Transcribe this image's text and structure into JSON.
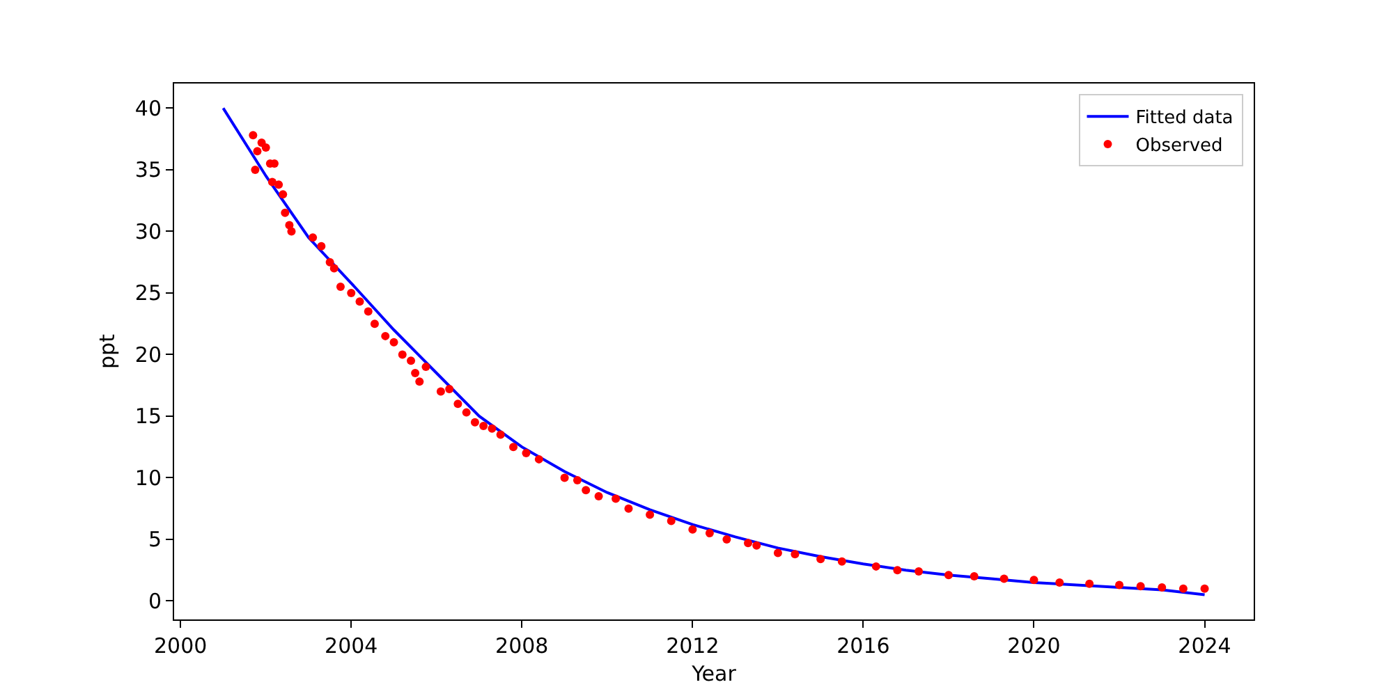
{
  "chart_data": {
    "type": "line",
    "xlabel": "Year",
    "ylabel": "ppt",
    "xlim": [
      1999.85,
      2025.15
    ],
    "xticks": [
      2000,
      2004,
      2008,
      2012,
      2016,
      2020,
      2024
    ],
    "ylim": [
      -1.5,
      42
    ],
    "yticks": [
      0,
      5,
      10,
      15,
      20,
      25,
      30,
      35,
      40
    ],
    "grid": false,
    "legend": "top right",
    "series": [
      {
        "name": "Fitted data",
        "color": "#0000ff",
        "line_style": "solid",
        "marker": "none",
        "x": [
          2001,
          2002,
          2003,
          2004,
          2005,
          2006,
          2007,
          2008,
          2009,
          2010,
          2011,
          2012,
          2013,
          2014,
          2015,
          2016,
          2017,
          2018,
          2019,
          2020,
          2021,
          2022,
          2023,
          2023.5,
          2024
        ],
        "values": [
          40,
          34.5,
          29.5,
          25.8,
          22,
          18.5,
          15,
          12.5,
          10.5,
          8.8,
          7.4,
          6.2,
          5.2,
          4.3,
          3.6,
          3,
          2.5,
          2.1,
          1.8,
          1.5,
          1.3,
          1.1,
          0.9,
          0.7,
          0.5
        ]
      },
      {
        "name": "Observed",
        "type": "scatter",
        "color": "#ff0000",
        "marker": "circle",
        "x": [
          2001.7,
          2001.75,
          2001.8,
          2001.9,
          2002,
          2002.1,
          2002.15,
          2002.2,
          2002.3,
          2002.4,
          2002.45,
          2002.55,
          2002.6,
          2003.1,
          2003.3,
          2003.5,
          2003.6,
          2003.75,
          2004,
          2004.2,
          2004.4,
          2004.55,
          2004.8,
          2005,
          2005.2,
          2005.4,
          2005.5,
          2005.6,
          2005.75,
          2006.1,
          2006.3,
          2006.5,
          2006.7,
          2006.9,
          2007.1,
          2007.3,
          2007.5,
          2007.8,
          2008.1,
          2008.4,
          2009,
          2009.3,
          2009.5,
          2009.8,
          2010.2,
          2010.5,
          2011,
          2011.5,
          2012,
          2012.4,
          2012.8,
          2013.3,
          2013.5,
          2014,
          2014.4,
          2015,
          2015.5,
          2016.3,
          2016.8,
          2017.3,
          2018,
          2018.6,
          2019.3,
          2020,
          2020.6,
          2021.3,
          2022,
          2022.5,
          2023,
          2023.5,
          2024
        ],
        "values": [
          37.8,
          35,
          36.5,
          37.2,
          36.8,
          35.5,
          34,
          35.5,
          33.8,
          33,
          31.5,
          30.5,
          30,
          29.5,
          28.8,
          27.5,
          27,
          25.5,
          25,
          24.3,
          23.5,
          22.5,
          21.5,
          21,
          20,
          19.5,
          18.5,
          17.8,
          19,
          17,
          17.2,
          16,
          15.3,
          14.5,
          14.2,
          14,
          13.5,
          12.5,
          12,
          11.5,
          10,
          9.8,
          9,
          8.5,
          8.3,
          7.5,
          7,
          6.5,
          5.8,
          5.5,
          5,
          4.7,
          4.5,
          3.9,
          3.8,
          3.4,
          3.2,
          2.8,
          2.5,
          2.4,
          2.1,
          2,
          1.8,
          1.7,
          1.5,
          1.4,
          1.3,
          1.2,
          1.1,
          1,
          1
        ]
      }
    ]
  }
}
